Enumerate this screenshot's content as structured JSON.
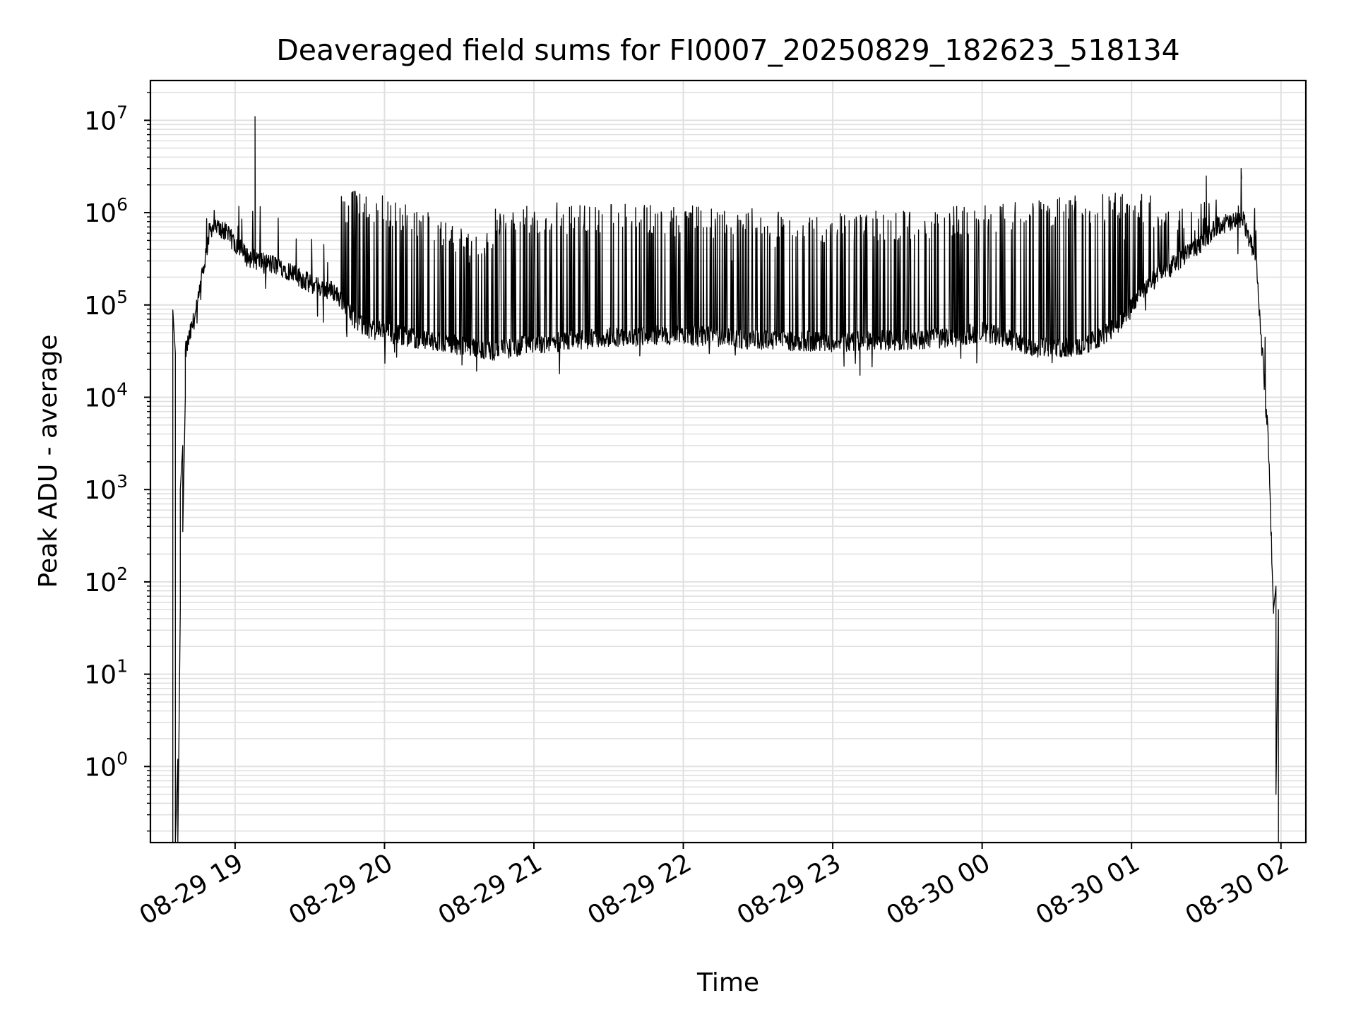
{
  "chart_data": {
    "type": "line",
    "title": "Deaveraged field sums for FI0007_20250829_182623_518134",
    "xlabel": "Time",
    "ylabel": "Peak ADU - average",
    "yscale": "log",
    "ylim": [
      0.15,
      27000000
    ],
    "xlim": [
      "2025-08-29 18:26",
      "2025-08-30 02:10"
    ],
    "grid": true,
    "line_color": "#000000",
    "grid_color": "#e0e0e0",
    "x_ticks": [
      "2025-08-29 19:00",
      "2025-08-29 20:00",
      "2025-08-29 21:00",
      "2025-08-29 22:00",
      "2025-08-29 23:00",
      "2025-08-30 00:00",
      "2025-08-30 01:00",
      "2025-08-30 02:00"
    ],
    "x_tick_labels": [
      "08-29 19",
      "08-29 20",
      "08-29 21",
      "08-29 22",
      "08-29 23",
      "08-30 00",
      "08-30 01",
      "08-30 02"
    ],
    "y_ticks": [
      1,
      10,
      100,
      1000,
      10000,
      100000,
      1000000,
      10000000
    ],
    "y_tick_labels": [
      {
        "base": "10",
        "exp": "0"
      },
      {
        "base": "10",
        "exp": "1"
      },
      {
        "base": "10",
        "exp": "2"
      },
      {
        "base": "10",
        "exp": "3"
      },
      {
        "base": "10",
        "exp": "4"
      },
      {
        "base": "10",
        "exp": "5"
      },
      {
        "base": "10",
        "exp": "6"
      },
      {
        "base": "10",
        "exp": "7"
      }
    ],
    "baseline": [
      {
        "t": "2025-08-29 18:40",
        "v": 30000
      },
      {
        "t": "2025-08-29 18:45",
        "v": 100000
      },
      {
        "t": "2025-08-29 18:50",
        "v": 700000
      },
      {
        "t": "2025-08-29 18:55",
        "v": 650000
      },
      {
        "t": "2025-08-29 19:05",
        "v": 330000
      },
      {
        "t": "2025-08-29 19:20",
        "v": 250000
      },
      {
        "t": "2025-08-29 19:30",
        "v": 170000
      },
      {
        "t": "2025-08-29 19:40",
        "v": 140000
      },
      {
        "t": "2025-08-29 19:50",
        "v": 60000
      },
      {
        "t": "2025-08-29 20:00",
        "v": 50000
      },
      {
        "t": "2025-08-29 20:20",
        "v": 40000
      },
      {
        "t": "2025-08-29 20:45",
        "v": 32000
      },
      {
        "t": "2025-08-29 21:00",
        "v": 38000
      },
      {
        "t": "2025-08-29 21:30",
        "v": 45000
      },
      {
        "t": "2025-08-29 22:00",
        "v": 48000
      },
      {
        "t": "2025-08-29 22:30",
        "v": 42000
      },
      {
        "t": "2025-08-29 23:00",
        "v": 40000
      },
      {
        "t": "2025-08-29 23:30",
        "v": 42000
      },
      {
        "t": "2025-08-29 23:50",
        "v": 45000
      },
      {
        "t": "2025-08-30 00:00",
        "v": 52000
      },
      {
        "t": "2025-08-30 00:20",
        "v": 35000
      },
      {
        "t": "2025-08-30 00:40",
        "v": 35000
      },
      {
        "t": "2025-08-30 00:55",
        "v": 60000
      },
      {
        "t": "2025-08-30 01:05",
        "v": 150000
      },
      {
        "t": "2025-08-30 01:15",
        "v": 250000
      },
      {
        "t": "2025-08-30 01:25",
        "v": 400000
      },
      {
        "t": "2025-08-30 01:35",
        "v": 750000
      },
      {
        "t": "2025-08-30 01:45",
        "v": 800000
      },
      {
        "t": "2025-08-30 01:50",
        "v": 300000
      },
      {
        "t": "2025-08-30 01:55",
        "v": 3000
      },
      {
        "t": "2025-08-30 01:57",
        "v": 50
      }
    ],
    "highs": [
      {
        "t": "2025-08-29 19:05",
        "v": 1500000
      },
      {
        "t": "2025-08-29 19:40",
        "v": 1500000
      },
      {
        "t": "2025-08-29 19:50",
        "v": 1800000
      },
      {
        "t": "2025-08-29 20:05",
        "v": 1400000
      },
      {
        "t": "2025-08-29 20:15",
        "v": 1200000
      },
      {
        "t": "2025-08-29 20:40",
        "v": 500000
      },
      {
        "t": "2025-08-29 20:45",
        "v": 1300000
      },
      {
        "t": "2025-08-29 21:30",
        "v": 1300000
      },
      {
        "t": "2025-08-29 22:00",
        "v": 1200000
      },
      {
        "t": "2025-08-29 22:30",
        "v": 1100000
      },
      {
        "t": "2025-08-29 23:00",
        "v": 1000000
      },
      {
        "t": "2025-08-29 23:30",
        "v": 1100000
      },
      {
        "t": "2025-08-30 00:00",
        "v": 1300000
      },
      {
        "t": "2025-08-30 00:30",
        "v": 1500000
      },
      {
        "t": "2025-08-30 01:00",
        "v": 1700000
      },
      {
        "t": "2025-08-30 01:20",
        "v": 1300000
      }
    ],
    "spikes": [
      {
        "t": "2025-08-29 19:08",
        "v": 11000000
      },
      {
        "t": "2025-08-30 01:30",
        "v": 2500000
      },
      {
        "t": "2025-08-30 01:44",
        "v": 3000000
      }
    ],
    "dense_region": {
      "start": "2025-08-29 19:38",
      "end": "2025-08-30 01:33"
    },
    "start_transient": [
      {
        "t": "2025-08-29 18:35",
        "v": 0.15
      },
      {
        "t": "2025-08-29 18:35",
        "v": 88000
      },
      {
        "t": "2025-08-29 18:36",
        "v": 30000
      },
      {
        "t": "2025-08-29 18:36",
        "v": 0.15
      },
      {
        "t": "2025-08-29 18:37",
        "v": 1.2
      },
      {
        "t": "2025-08-29 18:37",
        "v": 0.15
      },
      {
        "t": "2025-08-29 18:38",
        "v": 50
      },
      {
        "t": "2025-08-29 18:38",
        "v": 1000
      },
      {
        "t": "2025-08-29 18:39",
        "v": 3000
      },
      {
        "t": "2025-08-29 18:39",
        "v": 350
      },
      {
        "t": "2025-08-29 18:40",
        "v": 10000
      }
    ],
    "end_transient": [
      {
        "t": "2025-08-30 01:57",
        "v": 50
      },
      {
        "t": "2025-08-30 01:58",
        "v": 90
      },
      {
        "t": "2025-08-30 01:58",
        "v": 10
      },
      {
        "t": "2025-08-30 01:58",
        "v": 0.5
      },
      {
        "t": "2025-08-30 01:59",
        "v": 50
      },
      {
        "t": "2025-08-30 01:59",
        "v": 0.15
      }
    ]
  }
}
